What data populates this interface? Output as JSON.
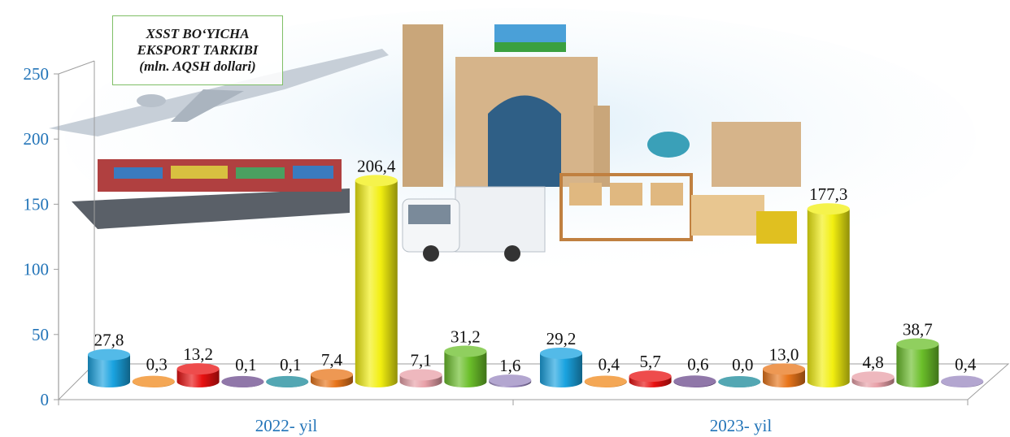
{
  "chart_data": {
    "type": "bar",
    "title_lines": [
      "XSST BO‘YICHA",
      "EKSPORT TARKIBI",
      "(mln. AQSH dollari)"
    ],
    "categories": [
      "2022- yil",
      "2023- yil"
    ],
    "ylim": [
      0,
      250
    ],
    "yticks": [
      "0",
      "50",
      "100",
      "150",
      "200",
      "250"
    ],
    "series_colors": [
      "#1aa3e0",
      "#f08a1c",
      "#e81010",
      "#6b4a8c",
      "#1a8a9a",
      "#e8751a",
      "#f2ef10",
      "#e8a0a8",
      "#6bbf2a",
      "#9a88c0"
    ],
    "series": [
      {
        "values": [
          27.8,
          29.2
        ],
        "labels": [
          "27,8",
          "29,2"
        ]
      },
      {
        "values": [
          0.3,
          0.4
        ],
        "labels": [
          "0,3",
          "0,4"
        ]
      },
      {
        "values": [
          13.2,
          5.7
        ],
        "labels": [
          "13,2",
          "5,7"
        ]
      },
      {
        "values": [
          0.1,
          0.6
        ],
        "labels": [
          "0,1",
          "0,6"
        ]
      },
      {
        "values": [
          0.1,
          0.0
        ],
        "labels": [
          "0,1",
          "0,0"
        ]
      },
      {
        "values": [
          7.4,
          13.0
        ],
        "labels": [
          "7,4",
          "13,0"
        ]
      },
      {
        "values": [
          206.4,
          177.3
        ],
        "labels": [
          "206,4",
          "177,3"
        ]
      },
      {
        "values": [
          7.1,
          4.8
        ],
        "labels": [
          "7,1",
          "4,8"
        ]
      },
      {
        "values": [
          31.2,
          38.7
        ],
        "labels": [
          "31,2",
          "38,7"
        ]
      },
      {
        "values": [
          1.6,
          0.4
        ],
        "labels": [
          "1,6",
          "0,4"
        ]
      }
    ]
  }
}
